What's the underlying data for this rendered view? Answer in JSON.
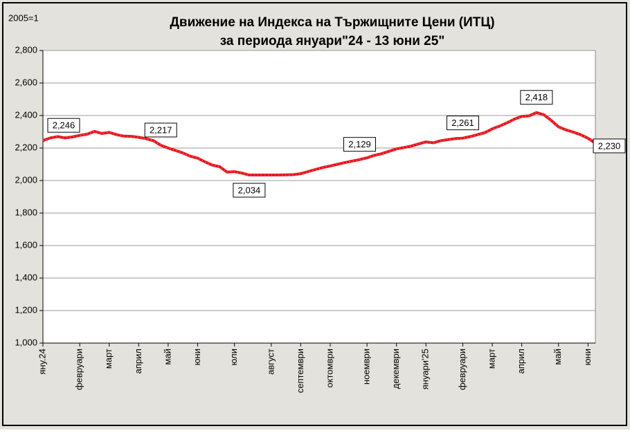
{
  "chart_data": {
    "type": "line",
    "base_note": "2005=1",
    "title": "Движение на Индекса на Тържищните Цени (ИТЦ)",
    "subtitle": "за периода януари\"24 - 13 юни 25\"",
    "categories": [
      "яну.24",
      null,
      null,
      null,
      null,
      "февруари",
      null,
      null,
      null,
      "март",
      null,
      null,
      null,
      "април",
      null,
      null,
      null,
      "май",
      null,
      null,
      null,
      "юни",
      null,
      null,
      null,
      null,
      "юли",
      null,
      null,
      null,
      null,
      "август",
      null,
      null,
      null,
      "септември",
      null,
      null,
      null,
      "октомври",
      null,
      null,
      null,
      null,
      "ноември",
      null,
      null,
      null,
      "декември",
      null,
      null,
      null,
      "януари'25",
      null,
      null,
      null,
      null,
      "февруари",
      null,
      null,
      null,
      "март",
      null,
      null,
      null,
      "април",
      null,
      null,
      null,
      null,
      "май",
      null,
      null,
      null,
      "юни",
      null
    ],
    "series": [
      {
        "color": "#e8141c",
        "values": [
          2246,
          2262,
          2270,
          2262,
          2268,
          2278,
          2285,
          2302,
          2290,
          2296,
          2282,
          2273,
          2272,
          2266,
          2258,
          2245,
          2217,
          2200,
          2185,
          2170,
          2150,
          2138,
          2115,
          2095,
          2085,
          2052,
          2055,
          2046,
          2034,
          2034,
          2034,
          2034,
          2034,
          2035,
          2036,
          2042,
          2055,
          2068,
          2080,
          2090,
          2100,
          2110,
          2120,
          2129,
          2140,
          2155,
          2165,
          2180,
          2195,
          2203,
          2212,
          2225,
          2238,
          2232,
          2245,
          2252,
          2258,
          2261,
          2270,
          2282,
          2295,
          2318,
          2335,
          2355,
          2378,
          2395,
          2398,
          2418,
          2405,
          2370,
          2330,
          2312,
          2298,
          2282,
          2260,
          2230
        ],
        "value_labels": [
          "2,246",
          null,
          null,
          null,
          null,
          null,
          null,
          null,
          null,
          null,
          null,
          null,
          null,
          null,
          null,
          null,
          "2,217",
          null,
          null,
          null,
          null,
          null,
          null,
          null,
          null,
          null,
          null,
          null,
          "2,034",
          null,
          null,
          null,
          null,
          null,
          null,
          null,
          null,
          null,
          null,
          null,
          null,
          null,
          null,
          "2,129",
          null,
          null,
          null,
          null,
          null,
          null,
          null,
          null,
          null,
          null,
          null,
          null,
          null,
          "2,261",
          null,
          null,
          null,
          null,
          null,
          null,
          null,
          null,
          null,
          "2,418",
          null,
          null,
          null,
          null,
          null,
          null,
          null,
          "2,230"
        ]
      }
    ],
    "ylim": [
      1000,
      2800
    ],
    "yticks": [
      {
        "value": 1000,
        "label": "1,000"
      },
      {
        "value": 1200,
        "label": "1,200"
      },
      {
        "value": 1400,
        "label": "1,400"
      },
      {
        "value": 1600,
        "label": "1,600"
      },
      {
        "value": 1800,
        "label": "1,800"
      },
      {
        "value": 2000,
        "label": "2,000"
      },
      {
        "value": 2200,
        "label": "2,200"
      },
      {
        "value": 2400,
        "label": "2,400"
      },
      {
        "value": 2600,
        "label": "2,600"
      },
      {
        "value": 2800,
        "label": "2,800"
      }
    ],
    "grid": true
  }
}
